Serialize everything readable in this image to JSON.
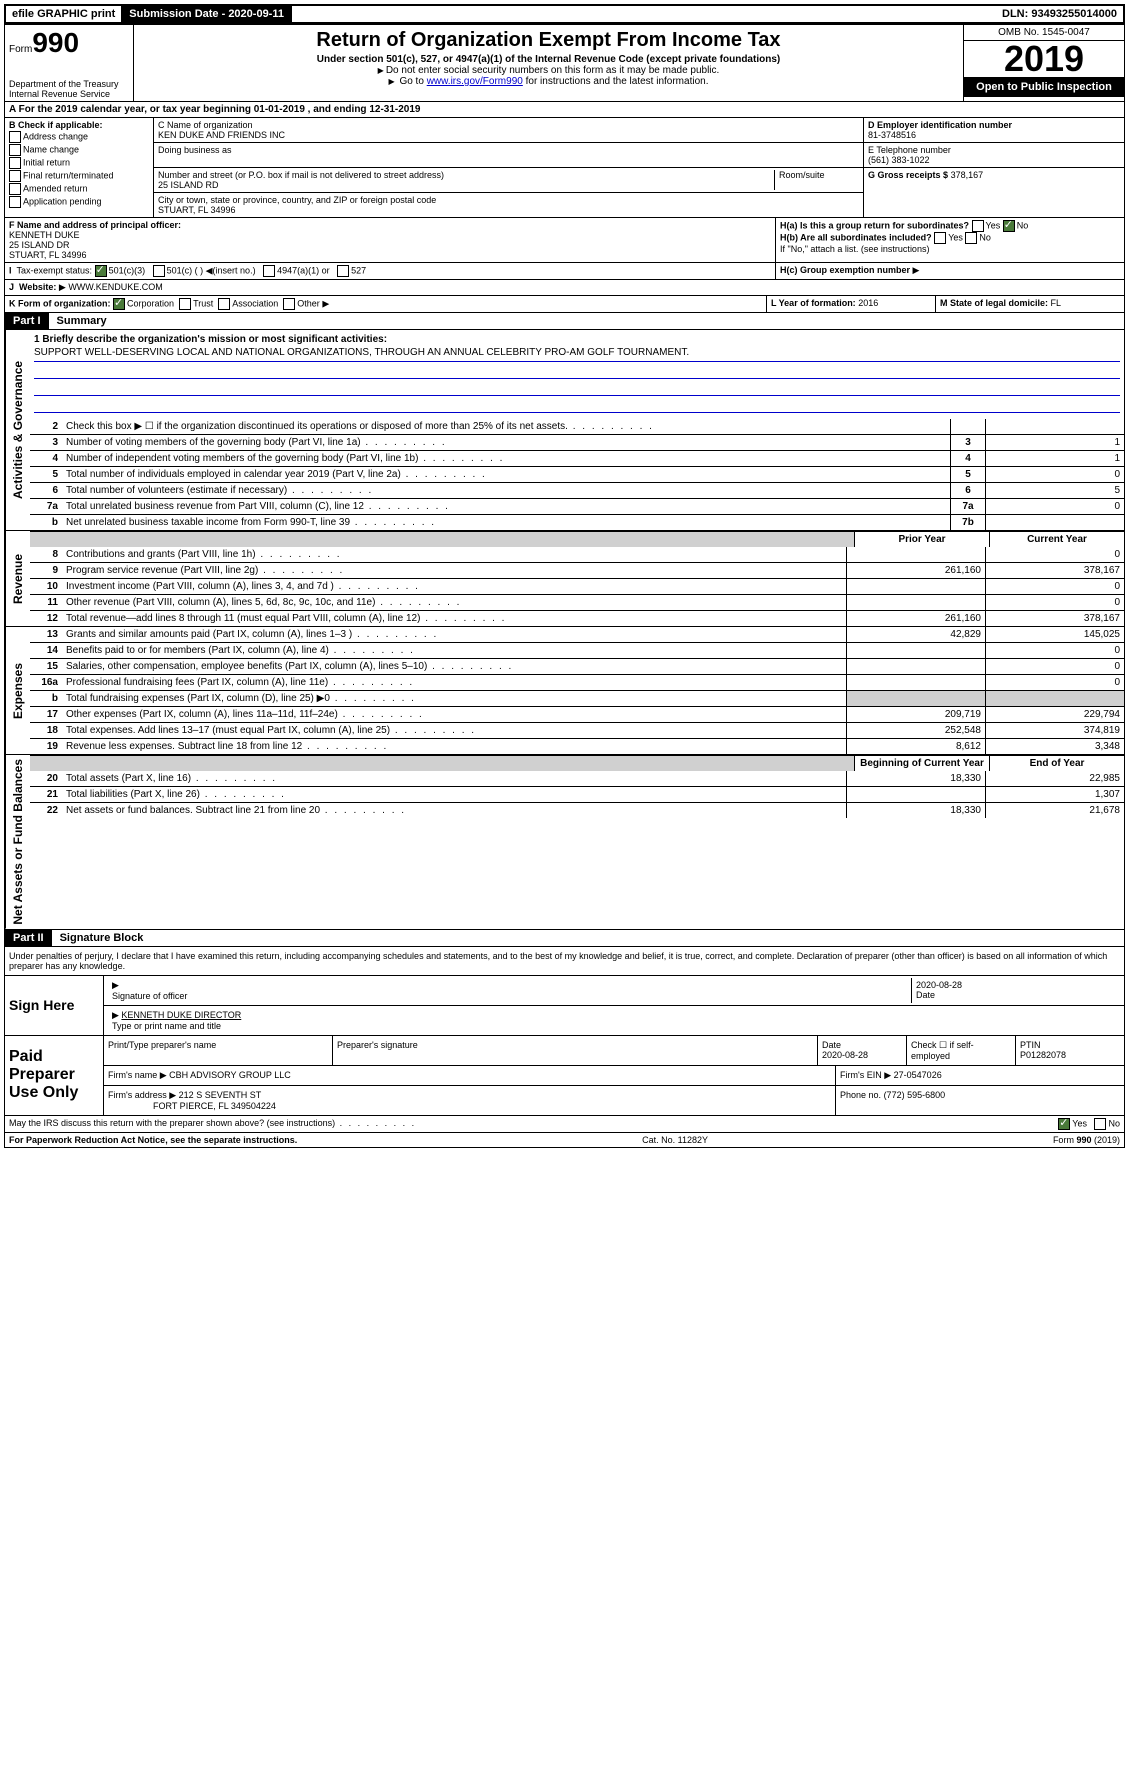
{
  "top": {
    "efile": "efile GRAPHIC print",
    "submission_label": "Submission Date - 2020-09-11",
    "dln": "DLN: 93493255014000"
  },
  "header": {
    "form_prefix": "Form",
    "form_number": "990",
    "title": "Return of Organization Exempt From Income Tax",
    "subtitle": "Under section 501(c), 527, or 4947(a)(1) of the Internal Revenue Code (except private foundations)",
    "note1": "Do not enter social security numbers on this form as it may be made public.",
    "note2_pre": "Go to ",
    "note2_link": "www.irs.gov/Form990",
    "note2_post": " for instructions and the latest information.",
    "dept": "Department of the Treasury\nInternal Revenue Service",
    "omb": "OMB No. 1545-0047",
    "year": "2019",
    "open": "Open to Public Inspection"
  },
  "section_a": "A For the 2019 calendar year, or tax year beginning 01-01-2019   , and ending 12-31-2019",
  "box_b": {
    "label": "B Check if applicable:",
    "opts": [
      "Address change",
      "Name change",
      "Initial return",
      "Final return/terminated",
      "Amended return",
      "Application pending"
    ]
  },
  "box_c": {
    "name_label": "C Name of organization",
    "name": "KEN DUKE AND FRIENDS INC",
    "dba_label": "Doing business as",
    "addr_label": "Number and street (or P.O. box if mail is not delivered to street address)",
    "room_label": "Room/suite",
    "addr": "25 ISLAND RD",
    "city_label": "City or town, state or province, country, and ZIP or foreign postal code",
    "city": "STUART, FL  34996"
  },
  "box_d": {
    "ein_label": "D Employer identification number",
    "ein": "81-3748516",
    "phone_label": "E Telephone number",
    "phone": "(561) 383-1022",
    "gross_label": "G Gross receipts $",
    "gross": "378,167"
  },
  "box_f": {
    "label": "F Name and address of principal officer:",
    "name": "KENNETH DUKE",
    "addr1": "25 ISLAND DR",
    "addr2": "STUART, FL  34996"
  },
  "box_h": {
    "a": "H(a)  Is this a group return for subordinates?",
    "a_yes": "Yes",
    "a_no": "No",
    "b": "H(b)  Are all subordinates included?",
    "b_yes": "Yes",
    "b_no": "No",
    "b_note": "If \"No,\" attach a list. (see instructions)",
    "c": "H(c)  Group exemption number"
  },
  "box_i": {
    "label": "Tax-exempt status:",
    "o1": "501(c)(3)",
    "o2": "501(c) (  )",
    "o2_note": "(insert no.)",
    "o3": "4947(a)(1) or",
    "o4": "527"
  },
  "box_j": {
    "label": "Website:",
    "value": "WWW.KENDUKE.COM"
  },
  "box_k": {
    "label": "K Form of organization:",
    "o1": "Corporation",
    "o2": "Trust",
    "o3": "Association",
    "o4": "Other"
  },
  "box_l": {
    "label": "L Year of formation:",
    "value": "2016"
  },
  "box_m": {
    "label": "M State of legal domicile:",
    "value": "FL"
  },
  "part1": {
    "tag": "Part I",
    "title": "Summary"
  },
  "mission": {
    "q": "1  Briefly describe the organization's mission or most significant activities:",
    "text": "SUPPORT WELL-DESERVING LOCAL AND NATIONAL ORGANIZATIONS, THROUGH AN ANNUAL CELEBRITY PRO-AM GOLF TOURNAMENT."
  },
  "lines_gov": [
    {
      "n": "2",
      "d": "Check this box ▶ ☐  if the organization discontinued its operations or disposed of more than 25% of its net assets.",
      "box": "",
      "v": ""
    },
    {
      "n": "3",
      "d": "Number of voting members of the governing body (Part VI, line 1a)",
      "box": "3",
      "v": "1"
    },
    {
      "n": "4",
      "d": "Number of independent voting members of the governing body (Part VI, line 1b)",
      "box": "4",
      "v": "1"
    },
    {
      "n": "5",
      "d": "Total number of individuals employed in calendar year 2019 (Part V, line 2a)",
      "box": "5",
      "v": "0"
    },
    {
      "n": "6",
      "d": "Total number of volunteers (estimate if necessary)",
      "box": "6",
      "v": "5"
    },
    {
      "n": "7a",
      "d": "Total unrelated business revenue from Part VIII, column (C), line 12",
      "box": "7a",
      "v": "0"
    },
    {
      "n": "b",
      "d": "Net unrelated business taxable income from Form 990-T, line 39",
      "box": "7b",
      "v": ""
    }
  ],
  "colhead": {
    "prior": "Prior Year",
    "current": "Current Year"
  },
  "lines_rev": [
    {
      "n": "8",
      "d": "Contributions and grants (Part VIII, line 1h)",
      "p": "",
      "c": "0"
    },
    {
      "n": "9",
      "d": "Program service revenue (Part VIII, line 2g)",
      "p": "261,160",
      "c": "378,167"
    },
    {
      "n": "10",
      "d": "Investment income (Part VIII, column (A), lines 3, 4, and 7d )",
      "p": "",
      "c": "0"
    },
    {
      "n": "11",
      "d": "Other revenue (Part VIII, column (A), lines 5, 6d, 8c, 9c, 10c, and 11e)",
      "p": "",
      "c": "0"
    },
    {
      "n": "12",
      "d": "Total revenue—add lines 8 through 11 (must equal Part VIII, column (A), line 12)",
      "p": "261,160",
      "c": "378,167"
    }
  ],
  "lines_exp": [
    {
      "n": "13",
      "d": "Grants and similar amounts paid (Part IX, column (A), lines 1–3 )",
      "p": "42,829",
      "c": "145,025"
    },
    {
      "n": "14",
      "d": "Benefits paid to or for members (Part IX, column (A), line 4)",
      "p": "",
      "c": "0"
    },
    {
      "n": "15",
      "d": "Salaries, other compensation, employee benefits (Part IX, column (A), lines 5–10)",
      "p": "",
      "c": "0"
    },
    {
      "n": "16a",
      "d": "Professional fundraising fees (Part IX, column (A), line 11e)",
      "p": "",
      "c": "0"
    },
    {
      "n": "b",
      "d": "Total fundraising expenses (Part IX, column (D), line 25) ▶0",
      "p": "GRAY",
      "c": "GRAY"
    },
    {
      "n": "17",
      "d": "Other expenses (Part IX, column (A), lines 11a–11d, 11f–24e)",
      "p": "209,719",
      "c": "229,794"
    },
    {
      "n": "18",
      "d": "Total expenses. Add lines 13–17 (must equal Part IX, column (A), line 25)",
      "p": "252,548",
      "c": "374,819"
    },
    {
      "n": "19",
      "d": "Revenue less expenses. Subtract line 18 from line 12",
      "p": "8,612",
      "c": "3,348"
    }
  ],
  "colhead2": {
    "prior": "Beginning of Current Year",
    "current": "End of Year"
  },
  "lines_net": [
    {
      "n": "20",
      "d": "Total assets (Part X, line 16)",
      "p": "18,330",
      "c": "22,985"
    },
    {
      "n": "21",
      "d": "Total liabilities (Part X, line 26)",
      "p": "",
      "c": "1,307"
    },
    {
      "n": "22",
      "d": "Net assets or fund balances. Subtract line 21 from line 20",
      "p": "18,330",
      "c": "21,678"
    }
  ],
  "part2": {
    "tag": "Part II",
    "title": "Signature Block"
  },
  "perjury": "Under penalties of perjury, I declare that I have examined this return, including accompanying schedules and statements, and to the best of my knowledge and belief, it is true, correct, and complete. Declaration of preparer (other than officer) is based on all information of which preparer has any knowledge.",
  "sign": {
    "here": "Sign Here",
    "sig_label": "Signature of officer",
    "date": "2020-08-28",
    "date_label": "Date",
    "name": "KENNETH DUKE DIRECTOR",
    "name_label": "Type or print name and title"
  },
  "paid": {
    "label": "Paid Preparer Use Only",
    "h1": "Print/Type preparer's name",
    "h2": "Preparer's signature",
    "h3": "Date",
    "date": "2020-08-28",
    "h4": "Check ☐ if self-employed",
    "h5": "PTIN",
    "ptin": "P01282078",
    "firm_name_label": "Firm's name",
    "firm_name": "CBH ADVISORY GROUP LLC",
    "firm_ein_label": "Firm's EIN",
    "firm_ein": "27-0547026",
    "firm_addr_label": "Firm's address",
    "firm_addr1": "212 S SEVENTH ST",
    "firm_addr2": "FORT PIERCE, FL  349504224",
    "phone_label": "Phone no.",
    "phone": "(772) 595-6800"
  },
  "discuss": {
    "q": "May the IRS discuss this return with the preparer shown above? (see instructions)",
    "yes": "Yes",
    "no": "No"
  },
  "footer": {
    "left": "For Paperwork Reduction Act Notice, see the separate instructions.",
    "mid": "Cat. No. 11282Y",
    "right": "Form 990 (2019)"
  },
  "side_labels": {
    "gov": "Activities & Governance",
    "rev": "Revenue",
    "exp": "Expenses",
    "net": "Net Assets or Fund Balances"
  }
}
